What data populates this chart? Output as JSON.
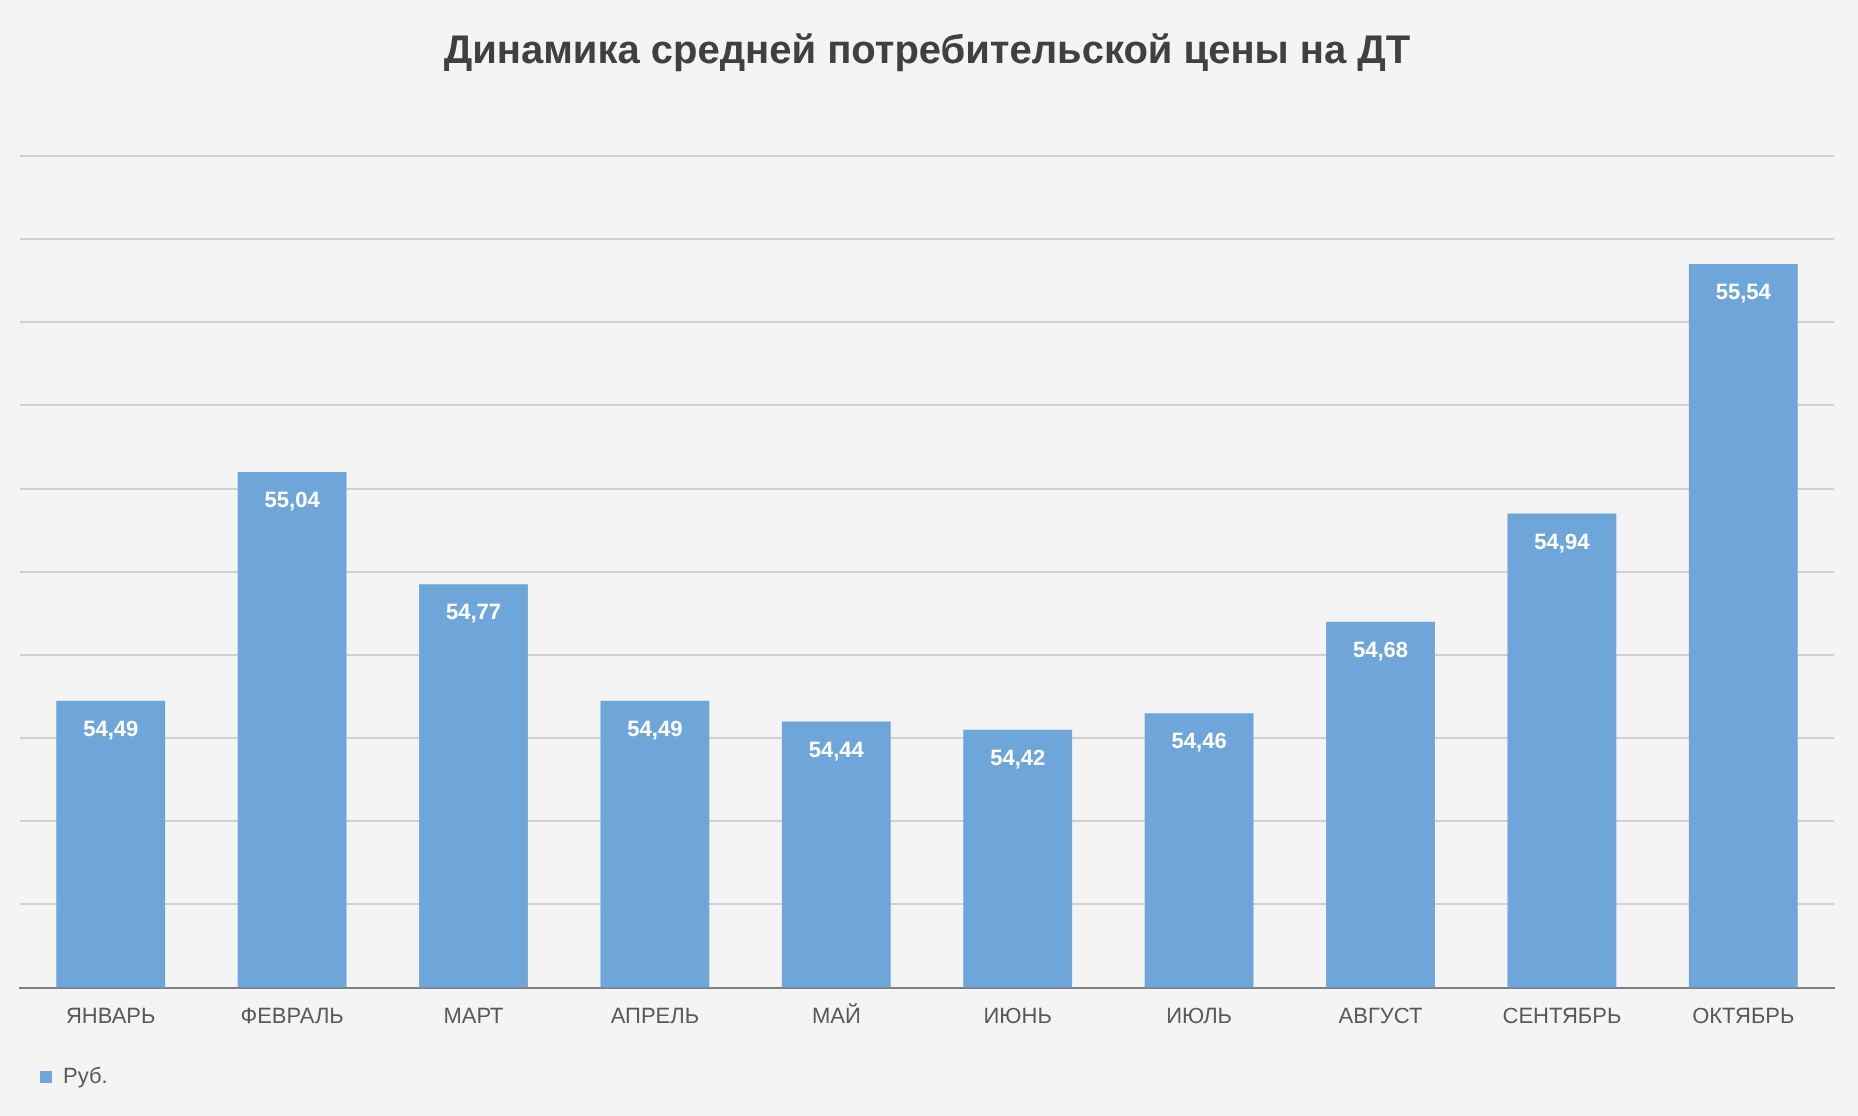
{
  "chart_data": {
    "type": "bar",
    "title": "Динамика средней потребительской цены на ДТ",
    "categories": [
      "ЯНВАРЬ",
      "ФЕВРАЛЬ",
      "МАРТ",
      "АПРЕЛЬ",
      "МАЙ",
      "ИЮНЬ",
      "ИЮЛЬ",
      "АВГУСТ",
      "СЕНТЯБРЬ",
      "ОКТЯБРЬ"
    ],
    "series": [
      {
        "name": "Руб.",
        "color": "#6fa6da",
        "values": [
          54.49,
          55.04,
          54.77,
          54.49,
          54.44,
          54.42,
          54.46,
          54.68,
          54.94,
          55.54
        ],
        "value_labels": [
          "54,49",
          "55,04",
          "54,77",
          "54,49",
          "54,44",
          "54,42",
          "54,46",
          "54,68",
          "54,94",
          "55,54"
        ]
      }
    ],
    "ylim": [
      53.8,
      55.8
    ],
    "yticks": [
      {
        "value": 53.8,
        "label": null
      },
      {
        "value": 54.0,
        "label": null
      },
      {
        "value": 54.2,
        "label": null
      },
      {
        "value": 54.4,
        "label": null
      },
      {
        "value": 54.6,
        "label": null
      },
      {
        "value": 54.8,
        "label": null
      },
      {
        "value": 55.0,
        "label": null
      },
      {
        "value": 55.2,
        "label": null
      },
      {
        "value": 55.4,
        "label": null
      },
      {
        "value": 55.6,
        "label": null
      },
      {
        "value": 55.8,
        "label": null
      }
    ],
    "grid": "y",
    "legend": "bottom left",
    "tick_labels": "x"
  }
}
